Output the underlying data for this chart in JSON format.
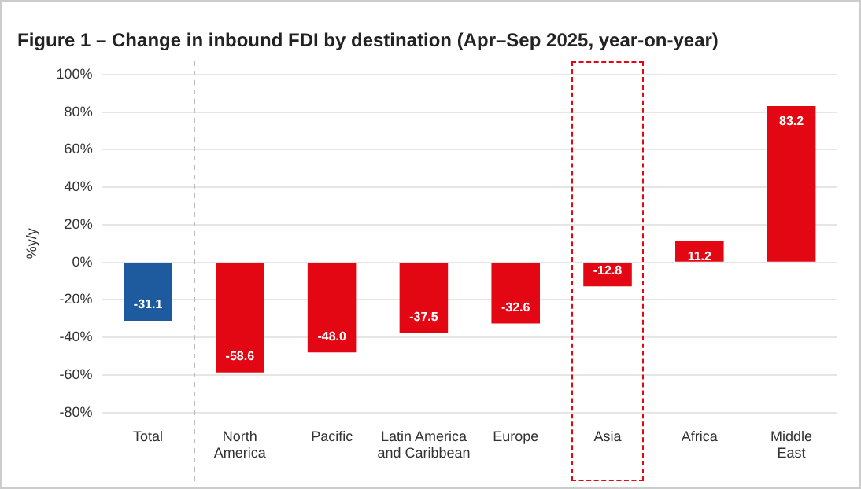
{
  "chart_data": {
    "type": "bar",
    "title": "Figure 1 – Change in inbound FDI by destination (Apr–Sep 2025, year-on-year)",
    "ylabel": "%y/y",
    "categories": [
      "Total",
      "North America",
      "Pacific",
      "Latin America and Caribbean",
      "Europe",
      "Asia",
      "Africa",
      "Middle East"
    ],
    "values": [
      -31.1,
      -58.6,
      -48.0,
      -37.5,
      -32.6,
      -12.8,
      11.2,
      83.2
    ],
    "value_labels": [
      "-31.1",
      "-58.6",
      "-48.0",
      "-37.5",
      "-32.6",
      "-12.8",
      "11.2",
      "83.2"
    ],
    "colors": [
      "#1d5a9e",
      "#e30613",
      "#e30613",
      "#e30613",
      "#e30613",
      "#e30613",
      "#e30613",
      "#e30613"
    ],
    "ylim": [
      -80,
      100
    ],
    "yticks": [
      {
        "value": -80,
        "label": "-80%"
      },
      {
        "value": -60,
        "label": "-60%"
      },
      {
        "value": -40,
        "label": "-40%"
      },
      {
        "value": -20,
        "label": "-20%"
      },
      {
        "value": 0,
        "label": "0%"
      },
      {
        "value": 20,
        "label": "20%"
      },
      {
        "value": 40,
        "label": "40%"
      },
      {
        "value": 60,
        "label": "60%"
      },
      {
        "value": 80,
        "label": "80%"
      },
      {
        "value": 100,
        "label": "100%"
      }
    ],
    "grid": "y",
    "legend": false
  }
}
